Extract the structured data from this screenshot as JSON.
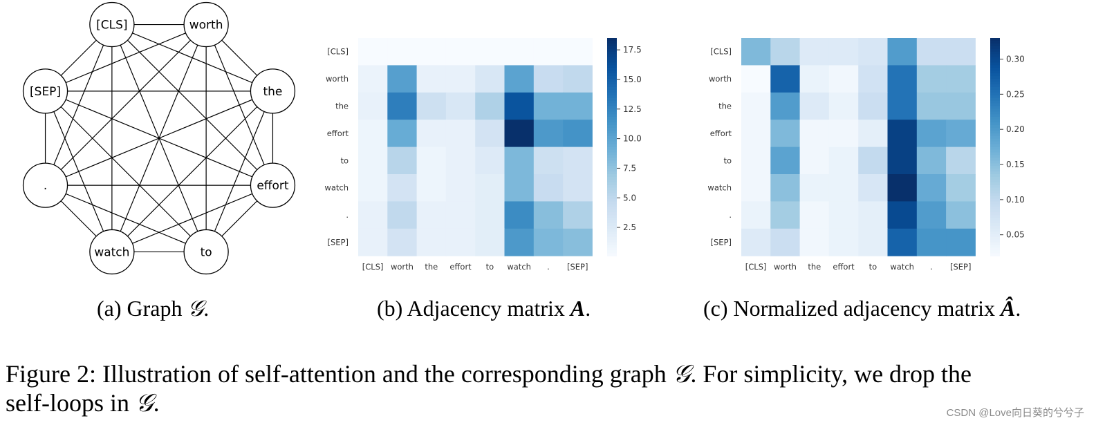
{
  "tokens": [
    "[CLS]",
    "worth",
    "the",
    "effort",
    "to",
    "watch",
    ".",
    "[SEP]"
  ],
  "graph": {
    "node_order": [
      "[CLS]",
      "worth",
      "the",
      "effort",
      "to",
      "watch",
      ".",
      "[SEP]"
    ]
  },
  "subcaptions": {
    "a": {
      "label": "(a)",
      "text": "Graph",
      "symbol": "𝒢",
      "end": "."
    },
    "b": {
      "label": "(b)",
      "text": "Adjacency matrix",
      "symbol": "A",
      "end": "."
    },
    "c": {
      "label": "(c)",
      "text": "Normalized adjacency matrix",
      "symbol": "Â",
      "end": "."
    }
  },
  "figure_caption": {
    "line1_start": "Figure 2: Illustration of self-attention and the corresponding graph",
    "line1_symbol": "𝒢",
    "line1_end": ". For simplicity, we drop the",
    "line2_start": "self-loops in",
    "line2_symbol": "𝒢",
    "line2_end": "."
  },
  "watermark": "CSDN @Love向日葵的兮兮子",
  "colors": {
    "cmap_low": "#f7fbff",
    "cmap_high": "#08306b",
    "line": "#000000"
  },
  "chart_data": [
    {
      "type": "heatmap",
      "id": "adjacency",
      "x_categories": [
        "[CLS]",
        "worth",
        "the",
        "effort",
        "to",
        "watch",
        ".",
        "[SEP]"
      ],
      "y_categories": [
        "[CLS]",
        "worth",
        "the",
        "effort",
        "to",
        "watch",
        ".",
        "[SEP]"
      ],
      "values": [
        [
          0.1,
          0.1,
          0.1,
          0.1,
          0.1,
          0.1,
          0.1,
          0.1
        ],
        [
          1.2,
          10.5,
          1.5,
          1.5,
          3.0,
          10.2,
          4.5,
          5.0
        ],
        [
          1.5,
          13.0,
          4.0,
          3.0,
          6.0,
          16.0,
          9.0,
          9.0
        ],
        [
          1.0,
          9.5,
          1.5,
          1.5,
          3.5,
          18.5,
          11.0,
          11.5
        ],
        [
          1.0,
          5.5,
          1.0,
          1.5,
          2.5,
          8.5,
          4.0,
          3.5
        ],
        [
          1.0,
          3.5,
          1.0,
          1.5,
          2.0,
          8.5,
          4.5,
          3.5
        ],
        [
          1.5,
          5.0,
          1.5,
          1.5,
          2.0,
          12.0,
          8.0,
          6.0
        ],
        [
          1.5,
          3.5,
          1.5,
          1.5,
          2.0,
          11.0,
          8.5,
          8.0
        ]
      ],
      "colorbar": {
        "min": 0.1,
        "max": 18.5,
        "ticks": [
          2.5,
          5.0,
          7.5,
          10.0,
          12.5,
          15.0,
          17.5
        ],
        "tick_labels": [
          "2.5",
          "5.0",
          "7.5",
          "10.0",
          "12.5",
          "15.0",
          "17.5"
        ]
      },
      "colormap": "Blues"
    },
    {
      "type": "heatmap",
      "id": "normalized_adjacency",
      "x_categories": [
        "[CLS]",
        "worth",
        "the",
        "effort",
        "to",
        "watch",
        ".",
        "[SEP]"
      ],
      "y_categories": [
        "[CLS]",
        "worth",
        "the",
        "effort",
        "to",
        "watch",
        ".",
        "[SEP]"
      ],
      "values": [
        [
          0.16,
          0.11,
          0.06,
          0.06,
          0.07,
          0.2,
          0.09,
          0.09
        ],
        [
          0.02,
          0.27,
          0.04,
          0.03,
          0.08,
          0.25,
          0.13,
          0.13
        ],
        [
          0.03,
          0.2,
          0.06,
          0.04,
          0.09,
          0.25,
          0.14,
          0.14
        ],
        [
          0.03,
          0.16,
          0.03,
          0.03,
          0.05,
          0.31,
          0.19,
          0.18
        ],
        [
          0.03,
          0.19,
          0.03,
          0.04,
          0.1,
          0.31,
          0.16,
          0.11
        ],
        [
          0.03,
          0.15,
          0.04,
          0.04,
          0.07,
          0.33,
          0.18,
          0.13
        ],
        [
          0.04,
          0.13,
          0.03,
          0.04,
          0.05,
          0.3,
          0.2,
          0.15
        ],
        [
          0.06,
          0.09,
          0.03,
          0.04,
          0.05,
          0.27,
          0.21,
          0.21
        ]
      ],
      "colorbar": {
        "min": 0.02,
        "max": 0.33,
        "ticks": [
          0.05,
          0.1,
          0.15,
          0.2,
          0.25,
          0.3
        ],
        "tick_labels": [
          "0.05",
          "0.10",
          "0.15",
          "0.20",
          "0.25",
          "0.30"
        ]
      },
      "colormap": "Blues"
    }
  ]
}
